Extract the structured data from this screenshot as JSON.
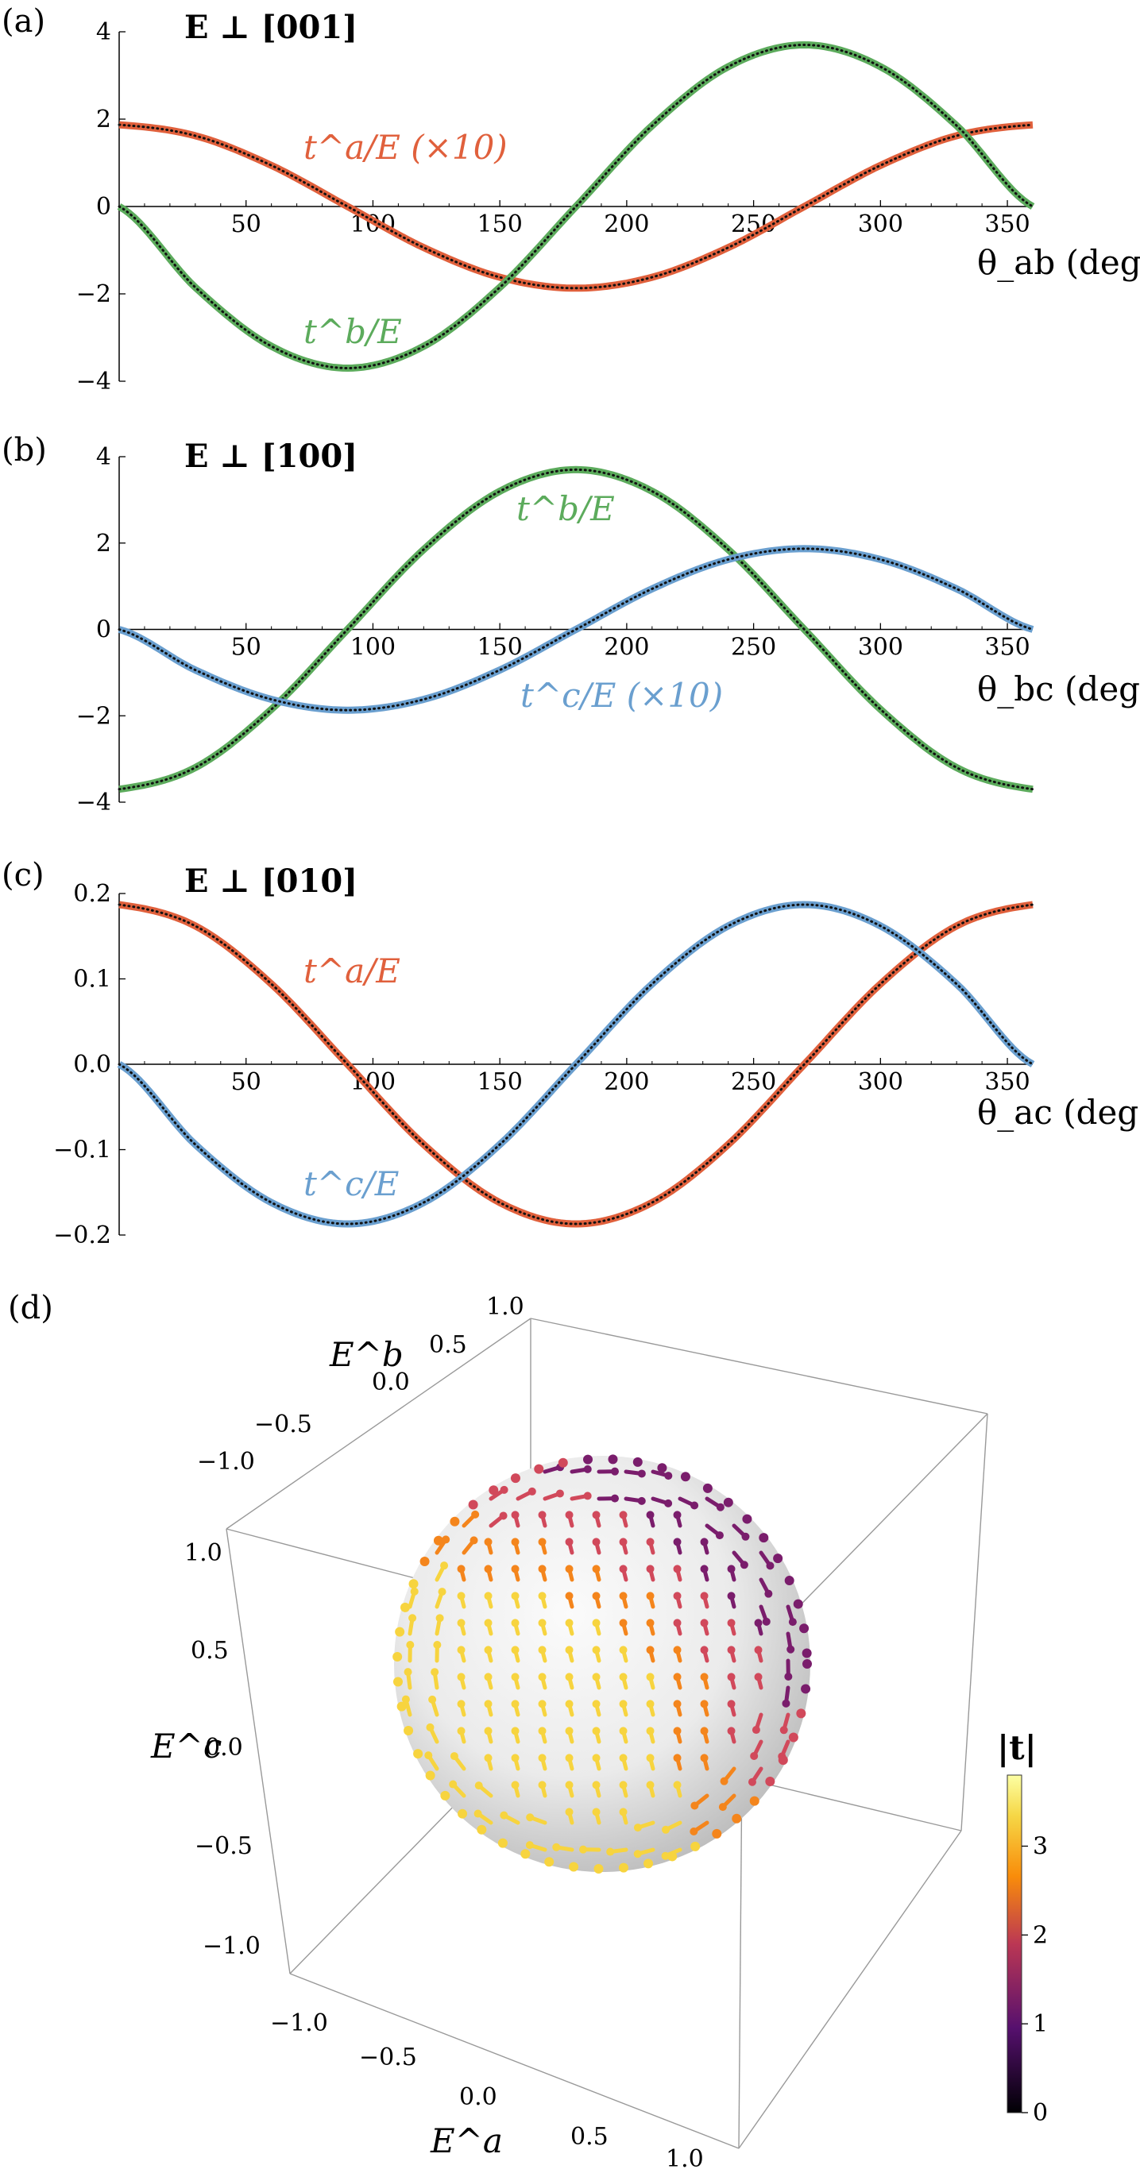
{
  "panels": [
    {
      "panel_label": "(a)",
      "condition": "E ⊥ [001]",
      "xlabel": "θ_ab (deg)",
      "x_ticks": [
        "50",
        "100",
        "150",
        "200",
        "250",
        "300",
        "350"
      ],
      "y_ticks": [
        "4",
        "2",
        "0",
        "−2",
        "−4"
      ],
      "curve_labels": [
        "t^a/E (×10)",
        "t^b/E"
      ]
    },
    {
      "panel_label": "(b)",
      "condition": "E ⊥ [100]",
      "xlabel": "θ_bc (deg)",
      "x_ticks": [
        "50",
        "100",
        "150",
        "200",
        "250",
        "300",
        "350"
      ],
      "y_ticks": [
        "4",
        "2",
        "0",
        "−2",
        "−4"
      ],
      "curve_labels": [
        "t^b/E",
        "t^c/E (×10)"
      ]
    },
    {
      "panel_label": "(c)",
      "condition": "E ⊥ [010]",
      "xlabel": "θ_ac (deg)",
      "x_ticks": [
        "50",
        "100",
        "150",
        "200",
        "250",
        "300",
        "350"
      ],
      "y_ticks": [
        "0.2",
        "0.1",
        "0.0",
        "−0.1",
        "−0.2"
      ],
      "curve_labels": [
        "t^a/E",
        "t^c/E"
      ]
    },
    {
      "panel_label": "(d)",
      "axes": {
        "Ea_label": "E^a",
        "Eb_label": "E^b",
        "Ec_label": "E^c",
        "Ea_ticks": [
          "−1.0",
          "−0.5",
          "0.0",
          "0.5",
          "1.0"
        ],
        "Eb_ticks": [
          "1.0",
          "0.5",
          "0.0",
          "−0.5",
          "−1.0"
        ],
        "Ec_ticks": [
          "1.0",
          "0.5",
          "0.0",
          "−0.5",
          "−1.0"
        ]
      },
      "colorbar": {
        "title": "|t|",
        "ticks": [
          "3",
          "2",
          "1",
          "0"
        ],
        "range": [
          0,
          3.8
        ]
      }
    }
  ],
  "colors": {
    "t_a": "#e0603c",
    "t_b": "#5cab5c",
    "t_c": "#6a9fcf",
    "dots": "#111111"
  },
  "chart_data": [
    {
      "type": "line",
      "panel": "(a)",
      "xlim": [
        0,
        360
      ],
      "ylim": [
        -4,
        4
      ],
      "x": [
        0,
        30,
        60,
        90,
        120,
        150,
        180,
        210,
        240,
        270,
        300,
        330,
        360
      ],
      "series": [
        {
          "name": "t^a/E (×10)",
          "values": [
            1.87,
            1.62,
            0.94,
            0.0,
            -0.94,
            -1.62,
            -1.87,
            -1.62,
            -0.94,
            0.0,
            0.94,
            1.62,
            1.87
          ]
        },
        {
          "name": "t^b/E",
          "values": [
            0.0,
            -1.85,
            -3.2,
            -3.7,
            -3.2,
            -1.85,
            0.0,
            1.85,
            3.2,
            3.7,
            3.2,
            1.85,
            0.0
          ]
        }
      ]
    },
    {
      "type": "line",
      "panel": "(b)",
      "xlim": [
        0,
        360
      ],
      "ylim": [
        -4,
        4
      ],
      "x": [
        0,
        30,
        60,
        90,
        120,
        150,
        180,
        210,
        240,
        270,
        300,
        330,
        360
      ],
      "series": [
        {
          "name": "t^b/E",
          "values": [
            -3.7,
            -3.2,
            -1.85,
            0.0,
            1.85,
            3.2,
            3.7,
            3.2,
            1.85,
            0.0,
            -1.85,
            -3.2,
            -3.7
          ]
        },
        {
          "name": "t^c/E (×10)",
          "values": [
            0.0,
            -0.94,
            -1.62,
            -1.87,
            -1.62,
            -0.94,
            0.0,
            0.94,
            1.62,
            1.87,
            1.62,
            0.94,
            0.0
          ]
        }
      ]
    },
    {
      "type": "line",
      "panel": "(c)",
      "xlim": [
        0,
        360
      ],
      "ylim": [
        -0.2,
        0.2
      ],
      "x": [
        0,
        30,
        60,
        90,
        120,
        150,
        180,
        210,
        240,
        270,
        300,
        330,
        360
      ],
      "series": [
        {
          "name": "t^a/E",
          "values": [
            0.187,
            0.162,
            0.094,
            0.0,
            -0.094,
            -0.162,
            -0.187,
            -0.162,
            -0.094,
            0.0,
            0.094,
            0.162,
            0.187
          ]
        },
        {
          "name": "t^c/E",
          "values": [
            0.0,
            -0.094,
            -0.162,
            -0.187,
            -0.162,
            -0.094,
            0.0,
            0.094,
            0.162,
            0.187,
            0.162,
            0.094,
            0.0
          ]
        }
      ]
    }
  ]
}
